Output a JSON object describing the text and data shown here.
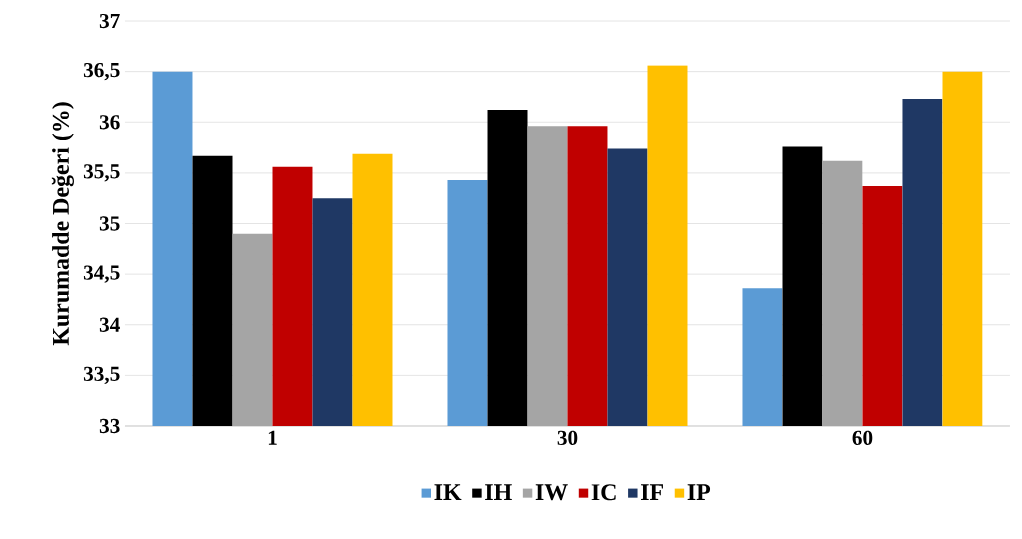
{
  "chart_data": {
    "type": "bar",
    "ylabel": "Kurumadde Değeri (%)",
    "categories": [
      "1",
      "30",
      "60"
    ],
    "series": [
      {
        "name": "IK",
        "color": "#5b9bd5",
        "values": [
          36.5,
          35.43,
          34.36
        ]
      },
      {
        "name": "IH",
        "color": "#000000",
        "values": [
          35.67,
          36.12,
          35.76
        ]
      },
      {
        "name": "IW",
        "color": "#a5a5a5",
        "values": [
          34.9,
          35.96,
          35.62
        ]
      },
      {
        "name": "IC",
        "color": "#c00000",
        "values": [
          35.56,
          35.96,
          35.37
        ]
      },
      {
        "name": "IF",
        "color": "#1f3864",
        "values": [
          35.25,
          35.74,
          36.23
        ]
      },
      {
        "name": "IP",
        "color": "#ffc000",
        "values": [
          35.69,
          36.56,
          36.5
        ]
      }
    ],
    "ylim": [
      33,
      37
    ],
    "yticks": [
      33,
      {
        "value": 33.5,
        "label": "33,5"
      },
      34,
      {
        "value": 34.5,
        "label": "34,5"
      },
      35,
      {
        "value": 35.5,
        "label": "35,5"
      },
      36,
      {
        "value": 36.5,
        "label": "36,5"
      },
      37
    ],
    "grid": "y",
    "legend": "bottom"
  }
}
